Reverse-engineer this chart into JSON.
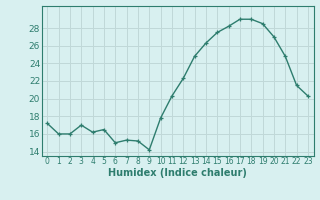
{
  "x": [
    0,
    1,
    2,
    3,
    4,
    5,
    6,
    7,
    8,
    9,
    10,
    11,
    12,
    13,
    14,
    15,
    16,
    17,
    18,
    19,
    20,
    21,
    22,
    23
  ],
  "y": [
    17.2,
    16.0,
    16.0,
    17.0,
    16.2,
    16.5,
    15.0,
    15.3,
    15.2,
    14.2,
    17.8,
    20.3,
    22.3,
    24.8,
    26.3,
    27.5,
    28.2,
    29.0,
    29.0,
    28.5,
    27.0,
    24.8,
    21.5,
    20.3
  ],
  "line_color": "#2e7d6e",
  "marker": "+",
  "marker_size": 3,
  "bg_color": "#d8f0f0",
  "grid_color": "#c0d8d8",
  "xlabel": "Humidex (Indice chaleur)",
  "xlim": [
    -0.5,
    23.5
  ],
  "ylim": [
    13.5,
    30.5
  ],
  "yticks": [
    14,
    16,
    18,
    20,
    22,
    24,
    26,
    28
  ],
  "xticks": [
    0,
    1,
    2,
    3,
    4,
    5,
    6,
    7,
    8,
    9,
    10,
    11,
    12,
    13,
    14,
    15,
    16,
    17,
    18,
    19,
    20,
    21,
    22,
    23
  ],
  "xtick_labels": [
    "0",
    "1",
    "2",
    "3",
    "4",
    "5",
    "6",
    "7",
    "8",
    "9",
    "10",
    "11",
    "12",
    "13",
    "14",
    "15",
    "16",
    "17",
    "18",
    "19",
    "20",
    "21",
    "22",
    "23"
  ],
  "line_width": 1.0,
  "xlabel_fontsize": 7,
  "tick_fontsize": 5.5,
  "ytick_fontsize": 6.5
}
